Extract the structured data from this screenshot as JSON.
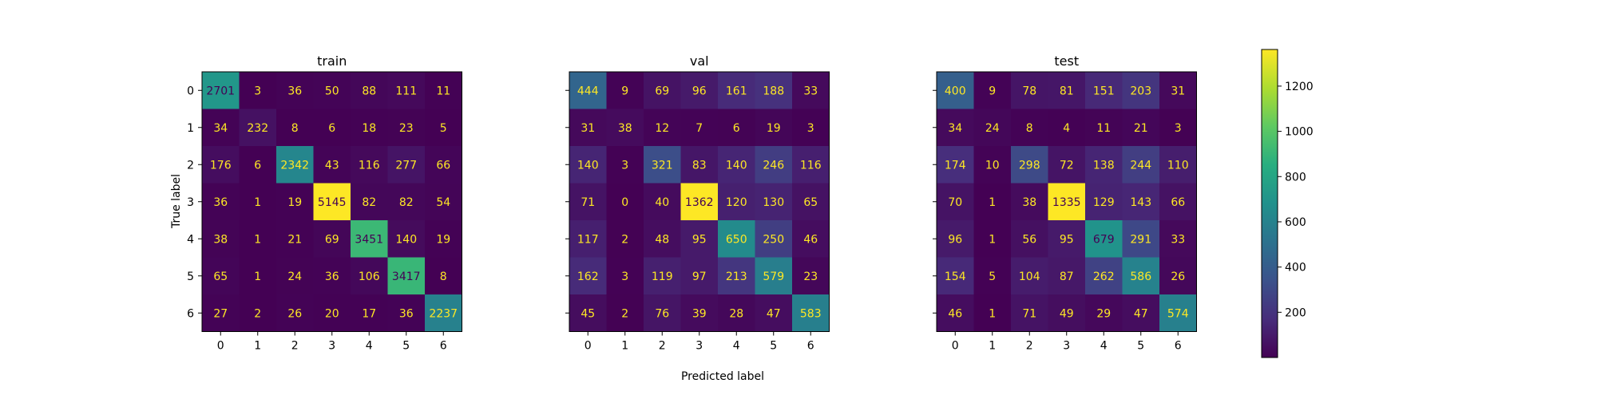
{
  "chart_data": {
    "type": "heatmap",
    "colormap": "viridis",
    "xlabel": "Predicted label",
    "ylabel": "True label",
    "labels": [
      "0",
      "1",
      "2",
      "3",
      "4",
      "5",
      "6"
    ],
    "colorbar": {
      "ticks": [
        "200",
        "400",
        "600",
        "800",
        "1000",
        "1200"
      ],
      "vmin": 0,
      "vmax": 1362
    },
    "panels": [
      {
        "title": "train",
        "matrix": [
          [
            2701,
            3,
            36,
            50,
            88,
            111,
            11
          ],
          [
            34,
            232,
            8,
            6,
            18,
            23,
            5
          ],
          [
            176,
            6,
            2342,
            43,
            116,
            277,
            66
          ],
          [
            36,
            1,
            19,
            5145,
            82,
            82,
            54
          ],
          [
            38,
            1,
            21,
            69,
            3451,
            140,
            19
          ],
          [
            65,
            1,
            24,
            36,
            106,
            3417,
            8
          ],
          [
            27,
            2,
            26,
            20,
            17,
            36,
            2237
          ]
        ]
      },
      {
        "title": "val",
        "matrix": [
          [
            444,
            9,
            69,
            96,
            161,
            188,
            33
          ],
          [
            31,
            38,
            12,
            7,
            6,
            19,
            3
          ],
          [
            140,
            3,
            321,
            83,
            140,
            246,
            116
          ],
          [
            71,
            0,
            40,
            1362,
            120,
            130,
            65
          ],
          [
            117,
            2,
            48,
            95,
            650,
            250,
            46
          ],
          [
            162,
            3,
            119,
            97,
            213,
            579,
            23
          ],
          [
            45,
            2,
            76,
            39,
            28,
            47,
            583
          ]
        ]
      },
      {
        "title": "test",
        "matrix": [
          [
            400,
            9,
            78,
            81,
            151,
            203,
            31
          ],
          [
            34,
            24,
            8,
            4,
            11,
            21,
            3
          ],
          [
            174,
            10,
            298,
            72,
            138,
            244,
            110
          ],
          [
            70,
            1,
            38,
            1335,
            129,
            143,
            66
          ],
          [
            96,
            1,
            56,
            95,
            679,
            291,
            33
          ],
          [
            154,
            5,
            104,
            87,
            262,
            586,
            26
          ],
          [
            46,
            1,
            71,
            49,
            29,
            47,
            574
          ]
        ]
      }
    ]
  }
}
